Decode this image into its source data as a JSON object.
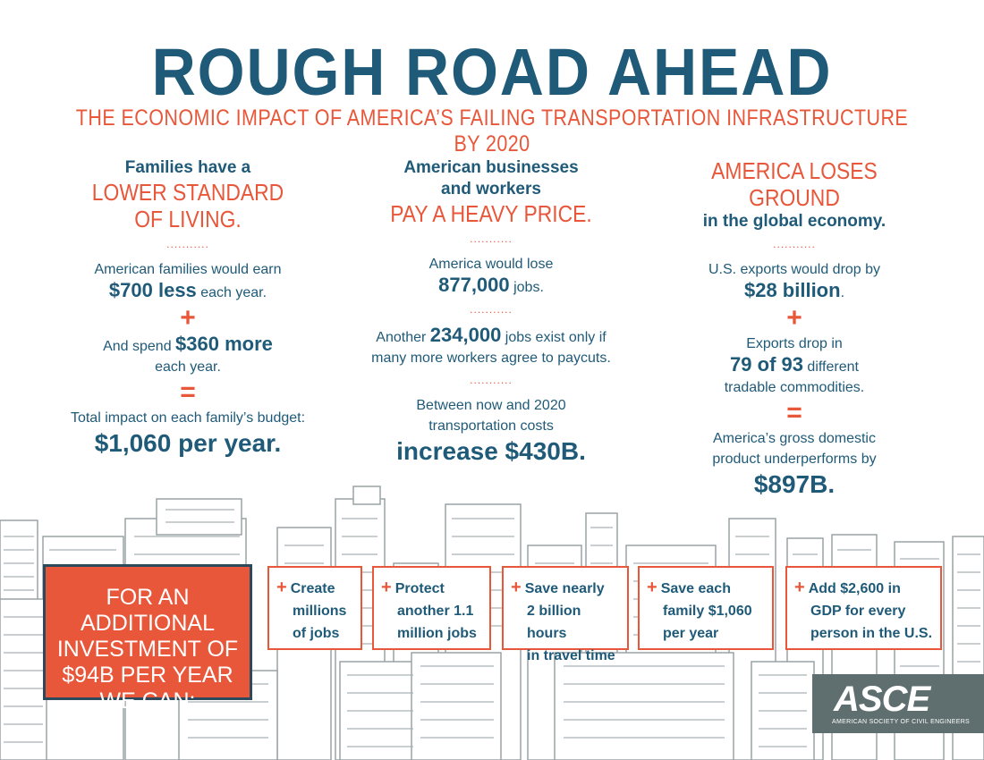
{
  "header": {
    "title": "ROUGH ROAD AHEAD",
    "subtitle": "THE ECONOMIC IMPACT OF AMERICA’S FAILING TRANSPORTATION INFRASTRUCTURE BY 2020"
  },
  "col1": {
    "h1": "Families have a",
    "h2": "LOWER STANDARD",
    "h3": "OF LIVING.",
    "dots": "...........",
    "p1a": "American families would earn",
    "p1b": "$700 less",
    "p1c": " each year.",
    "plus": "+",
    "p2a": "And spend ",
    "p2b": "$360 more",
    "p2c": "each year.",
    "eq": "=",
    "p3a": "Total impact on each family’s budget:",
    "p3b": "$1,060 per year."
  },
  "col2": {
    "h1": "American businesses",
    "h2": "and workers",
    "h3": "PAY A HEAVY PRICE.",
    "dots": "...........",
    "p1a": "America would lose",
    "p1b": "877,000",
    "p1c": " jobs.",
    "dots2": "...........",
    "p2a": "Another ",
    "p2b": "234,000",
    "p2c": " jobs exist only if",
    "p2d": "many more workers agree to paycuts.",
    "dots3": "...........",
    "p3a": "Between now and 2020",
    "p3b": "transportation costs",
    "p3c": "increase $430B."
  },
  "col3": {
    "h1": "AMERICA LOSES GROUND",
    "h2": "in the global economy.",
    "dots": "...........",
    "p1a": "U.S. exports",
    "p1b": " would drop by",
    "p1c": "$28 billion",
    "p1d": ".",
    "plus": "+",
    "p2a": "Exports drop in",
    "p2b": "79 of 93",
    "p2c": " different",
    "p2d": "tradable commodities.",
    "eq": "=",
    "p3a": "America’s gross domestic",
    "p3b": "product underperforms by",
    "p3c": "$897B."
  },
  "cta": {
    "l1": "FOR AN ADDITIONAL",
    "l2": "INVESTMENT OF",
    "l3": "$94B PER YEAR",
    "l4": "WE CAN:"
  },
  "benefits": [
    {
      "plus": "+",
      "l1": "Create",
      "l2": "millions",
      "l3": "of jobs"
    },
    {
      "plus": "+",
      "l1": "Protect",
      "l2": "another 1.1",
      "l3": "million jobs"
    },
    {
      "plus": "+",
      "l1": "Save nearly",
      "l2": "2 billion hours",
      "l3": "in travel time"
    },
    {
      "plus": "+",
      "l1": "Save each",
      "l2": "family $1,060",
      "l3": "per year"
    },
    {
      "plus": "+",
      "l1": "Add $2,600 in",
      "l2": "GDP for every",
      "l3": "person in the U.S."
    }
  ],
  "logo": {
    "mark": "ASCE",
    "sub": "AMERICAN SOCIETY OF CIVIL ENGINEERS"
  },
  "colors": {
    "navy": "#1f5a78",
    "orange": "#e8573a",
    "logo_bg": "#5f6e6e"
  }
}
